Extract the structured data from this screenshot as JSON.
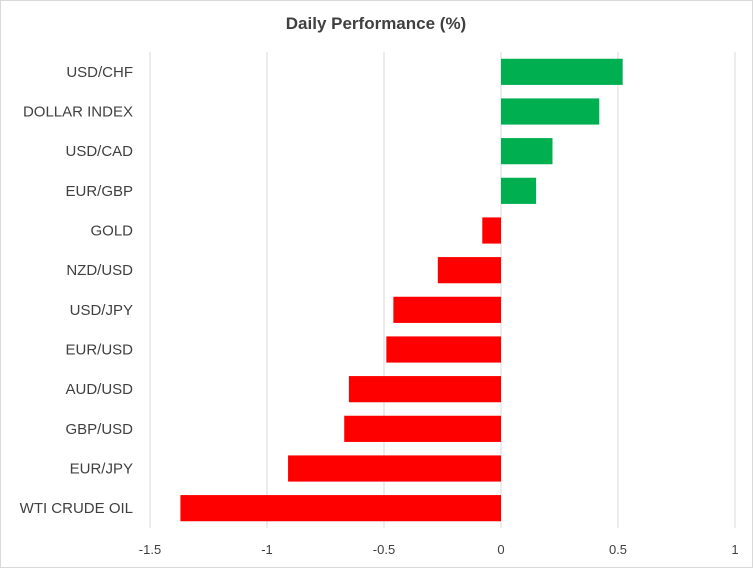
{
  "chart_data": {
    "type": "bar",
    "orientation": "horizontal",
    "title": "Daily Performance (%)",
    "xlabel": "",
    "ylabel": "",
    "categories": [
      "USD/CHF",
      "DOLLAR INDEX",
      "USD/CAD",
      "EUR/GBP",
      "GOLD",
      "NZD/USD",
      "USD/JPY",
      "EUR/USD",
      "AUD/USD",
      "GBP/USD",
      "EUR/JPY",
      "WTI CRUDE OIL"
    ],
    "values": [
      0.52,
      0.42,
      0.22,
      0.15,
      -0.08,
      -0.27,
      -0.46,
      -0.49,
      -0.65,
      -0.67,
      -0.91,
      -1.37
    ],
    "xlim": [
      -1.5,
      1
    ],
    "xticks": [
      "-1.5",
      "-1",
      "-0.5",
      "0",
      "0.5",
      "1"
    ],
    "grid": "vertical",
    "legend": "none",
    "colors": {
      "positive": "#00b050",
      "negative": "#ff0000",
      "grid": "#d9d9d9",
      "text": "#404040"
    }
  }
}
